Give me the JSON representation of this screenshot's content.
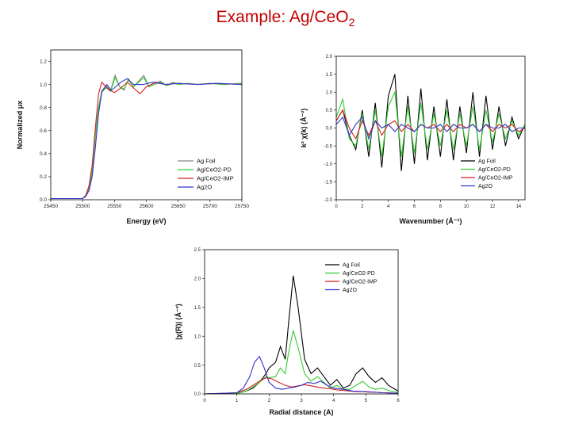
{
  "slide": {
    "title_main": "Example: Ag/CeO",
    "title_sub": "2"
  },
  "legend_labels": [
    "Ag Foil",
    "Ag/CeO2-PD",
    "Ag/CeO2-IMP",
    "Ag2O"
  ],
  "chart_data": [
    {
      "id": "xanes",
      "type": "line",
      "title": "",
      "xlabel": "Energy (eV)",
      "ylabel": "Normalized μx",
      "xlim": [
        25450,
        25750
      ],
      "ylim": [
        0.0,
        1.3
      ],
      "xticks": [
        25450,
        25500,
        25550,
        25600,
        25650,
        25700,
        25750
      ],
      "xtick_labels": [
        "25450",
        "25500",
        "25550",
        "25600",
        "25650",
        "25700",
        "25750"
      ],
      "yticks": [
        0.0,
        0.2,
        0.4,
        0.6,
        0.8,
        1.0,
        1.2
      ],
      "ytick_labels": [
        "0.0",
        "0.2",
        "0.4",
        "0.6",
        "0.8",
        "1.0",
        "1.2"
      ],
      "grid": false,
      "legend_position": "bottom-right",
      "series": [
        {
          "name": "Ag Foil",
          "color": "#888888",
          "x": [
            25450,
            25500,
            25505,
            25510,
            25515,
            25520,
            25525,
            25530,
            25537,
            25544,
            25551,
            25558,
            25565,
            25572,
            25580,
            25588,
            25596,
            25604,
            25612,
            25622,
            25632,
            25642,
            25652,
            25665,
            25680,
            25700,
            25720,
            25750
          ],
          "y": [
            0.01,
            0.01,
            0.03,
            0.1,
            0.25,
            0.55,
            0.8,
            0.95,
            0.99,
            0.95,
            1.08,
            0.98,
            0.95,
            1.05,
            0.98,
            1.03,
            1.08,
            0.98,
            1.0,
            1.03,
            0.99,
            1.02,
            1.0,
            1.01,
            1.0,
            1.01,
            1.0,
            1.01
          ]
        },
        {
          "name": "Ag/CeO2-PD",
          "color": "#33cc33",
          "x": [
            25450,
            25500,
            25505,
            25510,
            25515,
            25520,
            25525,
            25530,
            25537,
            25544,
            25551,
            25558,
            25565,
            25572,
            25580,
            25588,
            25596,
            25604,
            25612,
            25622,
            25632,
            25642,
            25652,
            25665,
            25680,
            25700,
            25720,
            25750
          ],
          "y": [
            0.01,
            0.01,
            0.03,
            0.1,
            0.25,
            0.55,
            0.8,
            0.94,
            0.97,
            0.94,
            1.06,
            0.98,
            0.96,
            1.04,
            0.98,
            1.02,
            1.06,
            0.98,
            1.0,
            1.02,
            0.99,
            1.01,
            1.0,
            1.01,
            1.0,
            1.01,
            1.0,
            1.01
          ]
        },
        {
          "name": "Ag/CeO2-IMP",
          "color": "#d42020",
          "x": [
            25450,
            25500,
            25505,
            25510,
            25515,
            25520,
            25525,
            25530,
            25540,
            25550,
            25560,
            25570,
            25580,
            25590,
            25600,
            25615,
            25630,
            25650,
            25680,
            25710,
            25750
          ],
          "y": [
            0.01,
            0.01,
            0.04,
            0.12,
            0.3,
            0.62,
            0.92,
            1.02,
            0.96,
            0.93,
            0.97,
            1.02,
            0.97,
            0.92,
            0.98,
            1.02,
            1.0,
            1.01,
            1.0,
            1.01,
            1.0
          ]
        },
        {
          "name": "Ag2O",
          "color": "#3333cc",
          "x": [
            25450,
            25500,
            25505,
            25510,
            25515,
            25520,
            25525,
            25530,
            25538,
            25545,
            25552,
            25560,
            25570,
            25580,
            25595,
            25610,
            25630,
            25650,
            25680,
            25710,
            25750
          ],
          "y": [
            0.01,
            0.01,
            0.03,
            0.08,
            0.2,
            0.45,
            0.75,
            0.93,
            1.0,
            0.95,
            0.98,
            1.02,
            1.05,
            1.0,
            1.0,
            1.02,
            1.0,
            1.01,
            1.0,
            1.01,
            1.0
          ]
        }
      ]
    },
    {
      "id": "exafs-k",
      "type": "line",
      "title": "",
      "xlabel": "Wavenumber (Å⁻¹)",
      "ylabel": "k² χ(k) (Å⁻²)",
      "xlim": [
        0,
        14.5
      ],
      "ylim": [
        -2.0,
        2.0
      ],
      "xticks": [
        0,
        2,
        4,
        6,
        8,
        10,
        12,
        14
      ],
      "xtick_labels": [
        "0",
        "2",
        "4",
        "6",
        "8",
        "10",
        "12",
        "14"
      ],
      "yticks": [
        -2.0,
        -1.5,
        -1.0,
        -0.5,
        0.0,
        0.5,
        1.0,
        1.5,
        2.0
      ],
      "ytick_labels": [
        "-2.0",
        "-1.5",
        "-1.0",
        "-0.5",
        "0.0",
        "0.5",
        "1.0",
        "1.5",
        "2.0"
      ],
      "grid": false,
      "legend_position": "bottom-right",
      "series": [
        {
          "name": "Ag Foil",
          "color": "#000000",
          "x": [
            0,
            0.5,
            1.0,
            1.5,
            2.0,
            2.5,
            3.0,
            3.5,
            4.0,
            4.5,
            5.0,
            5.5,
            6.0,
            6.5,
            7.0,
            7.5,
            8.0,
            8.5,
            9.0,
            9.5,
            10.0,
            10.5,
            11.0,
            11.5,
            12.0,
            12.5,
            13.0,
            13.5,
            14.0,
            14.5
          ],
          "y": [
            0.2,
            0.5,
            -0.2,
            -0.6,
            0.5,
            -0.8,
            0.7,
            -1.1,
            0.9,
            1.5,
            -1.2,
            0.9,
            -1.0,
            1.1,
            -0.9,
            0.6,
            -0.8,
            0.8,
            -0.9,
            0.6,
            -0.7,
            1.0,
            -0.8,
            0.9,
            -0.6,
            0.6,
            -0.5,
            0.3,
            -0.3,
            0.1
          ]
        },
        {
          "name": "Ag/CeO2-PD",
          "color": "#33cc33",
          "x": [
            0,
            0.5,
            1.0,
            1.5,
            2.0,
            2.5,
            3.0,
            3.5,
            4.0,
            4.5,
            5.0,
            5.5,
            6.0,
            6.5,
            7.0,
            7.5,
            8.0,
            8.5,
            9.0,
            9.5,
            10.0,
            10.5,
            11.0,
            11.5,
            12.0,
            12.5,
            13.0,
            13.5,
            14.0,
            14.5
          ],
          "y": [
            0.3,
            0.8,
            -0.3,
            -0.5,
            0.4,
            -0.6,
            0.5,
            -0.8,
            0.6,
            1.0,
            -0.8,
            0.6,
            -0.7,
            0.7,
            -0.6,
            0.4,
            -0.5,
            0.5,
            -0.6,
            0.4,
            -0.5,
            0.6,
            -0.6,
            0.5,
            -0.4,
            0.4,
            -0.3,
            0.2,
            -0.2,
            0.1
          ]
        },
        {
          "name": "Ag/CeO2-IMP",
          "color": "#d42020",
          "x": [
            0,
            0.5,
            1.0,
            1.5,
            2.0,
            2.5,
            3.0,
            3.5,
            4.0,
            4.5,
            5.0,
            5.5,
            6.0,
            6.5,
            7.0,
            7.5,
            8.0,
            8.5,
            9.0,
            9.5,
            10.0,
            10.5,
            11.0,
            11.5,
            12.0,
            12.5,
            13.0,
            13.5,
            14.0,
            14.5
          ],
          "y": [
            0.2,
            0.5,
            0.0,
            -0.3,
            0.2,
            -0.2,
            0.2,
            -0.2,
            0.1,
            0.2,
            -0.1,
            0.1,
            -0.1,
            0.1,
            0.0,
            0.1,
            -0.1,
            0.1,
            -0.1,
            0.1,
            0.0,
            0.1,
            -0.1,
            0.1,
            -0.1,
            0.1,
            0.0,
            0.1,
            -0.1,
            0.0
          ]
        },
        {
          "name": "Ag2O",
          "color": "#3333cc",
          "x": [
            0,
            0.5,
            1.0,
            1.5,
            2.0,
            2.5,
            3.0,
            3.5,
            4.0,
            4.5,
            5.0,
            5.5,
            6.0,
            6.5,
            7.0,
            7.5,
            8.0,
            8.5,
            9.0,
            9.5,
            10.0,
            10.5,
            11.0,
            11.5,
            12.0,
            12.5,
            13.0,
            13.5,
            14.0,
            14.5
          ],
          "y": [
            0.1,
            0.3,
            -0.2,
            0.1,
            0.3,
            -0.3,
            0.2,
            0.0,
            0.1,
            -0.1,
            0.1,
            0.0,
            -0.1,
            0.1,
            0.0,
            0.0,
            0.1,
            -0.1,
            0.1,
            0.0,
            0.0,
            0.1,
            -0.1,
            0.1,
            0.0,
            0.0,
            0.1,
            -0.1,
            0.0,
            0.0
          ]
        }
      ]
    },
    {
      "id": "exafs-r",
      "type": "line",
      "title": "",
      "xlabel": "Radial distance (A)",
      "ylabel": "|χ(R)| (Å⁻³)",
      "xlim": [
        0,
        6
      ],
      "ylim": [
        0.0,
        2.5
      ],
      "xticks": [
        0,
        1,
        2,
        3,
        4,
        5,
        6
      ],
      "xtick_labels": [
        "0",
        "1",
        "2",
        "3",
        "4",
        "5",
        "6"
      ],
      "yticks": [
        0.0,
        0.5,
        1.0,
        1.5,
        2.0,
        2.5
      ],
      "ytick_labels": [
        "0.0",
        "0.5",
        "1.0",
        "1.5",
        "2.0",
        "2.5"
      ],
      "grid": false,
      "legend_position": "top-right",
      "series": [
        {
          "name": "Ag Foil",
          "color": "#000000",
          "x": [
            0,
            1.0,
            1.3,
            1.5,
            1.7,
            1.9,
            2.0,
            2.2,
            2.35,
            2.5,
            2.6,
            2.75,
            2.9,
            3.1,
            3.3,
            3.5,
            3.7,
            3.9,
            4.1,
            4.3,
            4.5,
            4.7,
            4.9,
            5.1,
            5.3,
            5.5,
            5.7,
            6.0
          ],
          "y": [
            0.0,
            0.01,
            0.05,
            0.1,
            0.2,
            0.35,
            0.45,
            0.55,
            0.82,
            0.6,
            1.2,
            2.05,
            1.5,
            0.6,
            0.35,
            0.45,
            0.3,
            0.15,
            0.25,
            0.1,
            0.15,
            0.35,
            0.45,
            0.3,
            0.2,
            0.28,
            0.15,
            0.05
          ]
        },
        {
          "name": "Ag/CeO2-PD",
          "color": "#33cc33",
          "x": [
            0,
            1.0,
            1.3,
            1.5,
            1.7,
            1.9,
            2.0,
            2.2,
            2.35,
            2.5,
            2.6,
            2.75,
            2.9,
            3.1,
            3.3,
            3.5,
            3.7,
            3.9,
            4.1,
            4.3,
            4.5,
            4.7,
            4.9,
            5.1,
            5.3,
            5.5,
            5.7,
            6.0
          ],
          "y": [
            0.0,
            0.01,
            0.05,
            0.12,
            0.2,
            0.3,
            0.28,
            0.3,
            0.45,
            0.35,
            0.7,
            1.1,
            0.8,
            0.35,
            0.22,
            0.3,
            0.2,
            0.1,
            0.15,
            0.08,
            0.08,
            0.15,
            0.22,
            0.12,
            0.08,
            0.1,
            0.06,
            0.02
          ]
        },
        {
          "name": "Ag/CeO2-IMP",
          "color": "#d42020",
          "x": [
            0,
            1.0,
            1.3,
            1.5,
            1.7,
            1.9,
            2.1,
            2.3,
            2.5,
            2.7,
            2.9,
            3.1,
            3.3,
            3.5,
            3.7,
            3.9,
            4.1,
            4.3,
            4.5,
            4.7,
            4.9,
            5.1,
            5.3,
            5.5,
            5.7,
            6.0
          ],
          "y": [
            0.0,
            0.02,
            0.08,
            0.15,
            0.22,
            0.28,
            0.26,
            0.2,
            0.15,
            0.12,
            0.14,
            0.16,
            0.14,
            0.12,
            0.1,
            0.09,
            0.07,
            0.06,
            0.05,
            0.04,
            0.04,
            0.03,
            0.03,
            0.02,
            0.02,
            0.01
          ]
        },
        {
          "name": "Ag2O",
          "color": "#3333cc",
          "x": [
            0,
            1.0,
            1.2,
            1.4,
            1.55,
            1.7,
            1.85,
            2.0,
            2.2,
            2.4,
            2.6,
            2.8,
            3.0,
            3.2,
            3.4,
            3.6,
            3.8,
            4.0,
            4.3,
            4.6,
            5.0,
            5.5,
            6.0
          ],
          "y": [
            0.0,
            0.02,
            0.1,
            0.3,
            0.55,
            0.65,
            0.45,
            0.2,
            0.1,
            0.08,
            0.1,
            0.12,
            0.15,
            0.2,
            0.18,
            0.22,
            0.15,
            0.1,
            0.08,
            0.05,
            0.04,
            0.02,
            0.01
          ]
        }
      ]
    }
  ]
}
